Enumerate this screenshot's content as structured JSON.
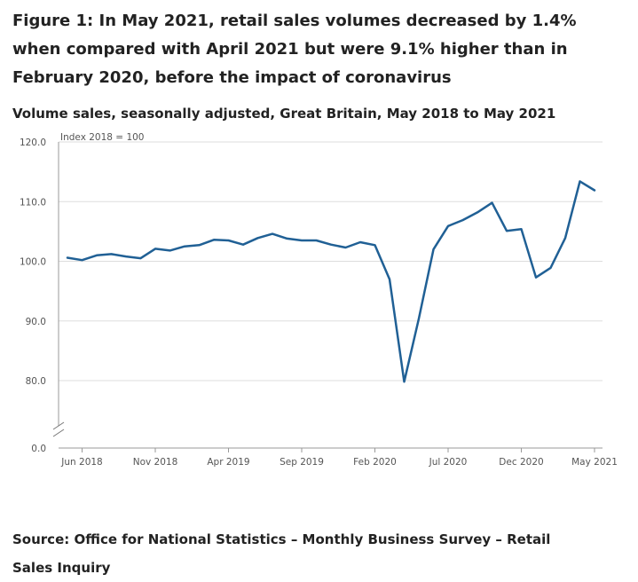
{
  "figure": {
    "title": "Figure 1: In May 2021, retail sales volumes decreased by 1.4% when compared with April 2021 but were 9.1% higher than in February 2020, before the impact of coronavirus",
    "subtitle": "Volume sales, seasonally adjusted, Great Britain, May 2018 to May 2021",
    "source": "Source: Office for National Statistics – Monthly Business Survey – Retail Sales Inquiry"
  },
  "chart_data": {
    "type": "line",
    "title": "Volume sales, seasonally adjusted, Great Britain, May 2018 to May 2021",
    "ylabel": "Index 2018 = 100",
    "xlabel": "",
    "y_axis_break": true,
    "ylim": [
      0,
      120
    ],
    "y_ticks": [
      "120.0",
      "110.0",
      "100.0",
      "90.0",
      "80.0",
      "0.0"
    ],
    "x_ticks": [
      "Jun 2018",
      "Nov 2018",
      "Apr 2019",
      "Sep 2019",
      "Feb 2020",
      "Jul 2020",
      "Dec 2020",
      "May 2021"
    ],
    "series": [
      {
        "name": "Volume sales",
        "color": "#206095",
        "x": [
          "May 2018",
          "Jun 2018",
          "Jul 2018",
          "Aug 2018",
          "Sep 2018",
          "Oct 2018",
          "Nov 2018",
          "Dec 2018",
          "Jan 2019",
          "Feb 2019",
          "Mar 2019",
          "Apr 2019",
          "May 2019",
          "Jun 2019",
          "Jul 2019",
          "Aug 2019",
          "Sep 2019",
          "Oct 2019",
          "Nov 2019",
          "Dec 2019",
          "Jan 2020",
          "Feb 2020",
          "Mar 2020",
          "Apr 2020",
          "May 2020",
          "Jun 2020",
          "Jul 2020",
          "Aug 2020",
          "Sep 2020",
          "Oct 2020",
          "Nov 2020",
          "Dec 2020",
          "Jan 2021",
          "Feb 2021",
          "Mar 2021",
          "Apr 2021",
          "May 2021"
        ],
        "values": [
          100.6,
          100.2,
          101.0,
          101.2,
          100.8,
          100.5,
          102.1,
          101.8,
          102.5,
          102.7,
          103.6,
          103.5,
          102.8,
          103.9,
          104.6,
          103.8,
          103.5,
          103.5,
          102.8,
          102.3,
          103.2,
          102.7,
          97.0,
          79.8,
          90.4,
          102.0,
          105.9,
          106.9,
          108.2,
          109.8,
          105.1,
          105.4,
          97.3,
          98.9,
          103.9,
          113.4,
          111.9
        ]
      }
    ]
  }
}
